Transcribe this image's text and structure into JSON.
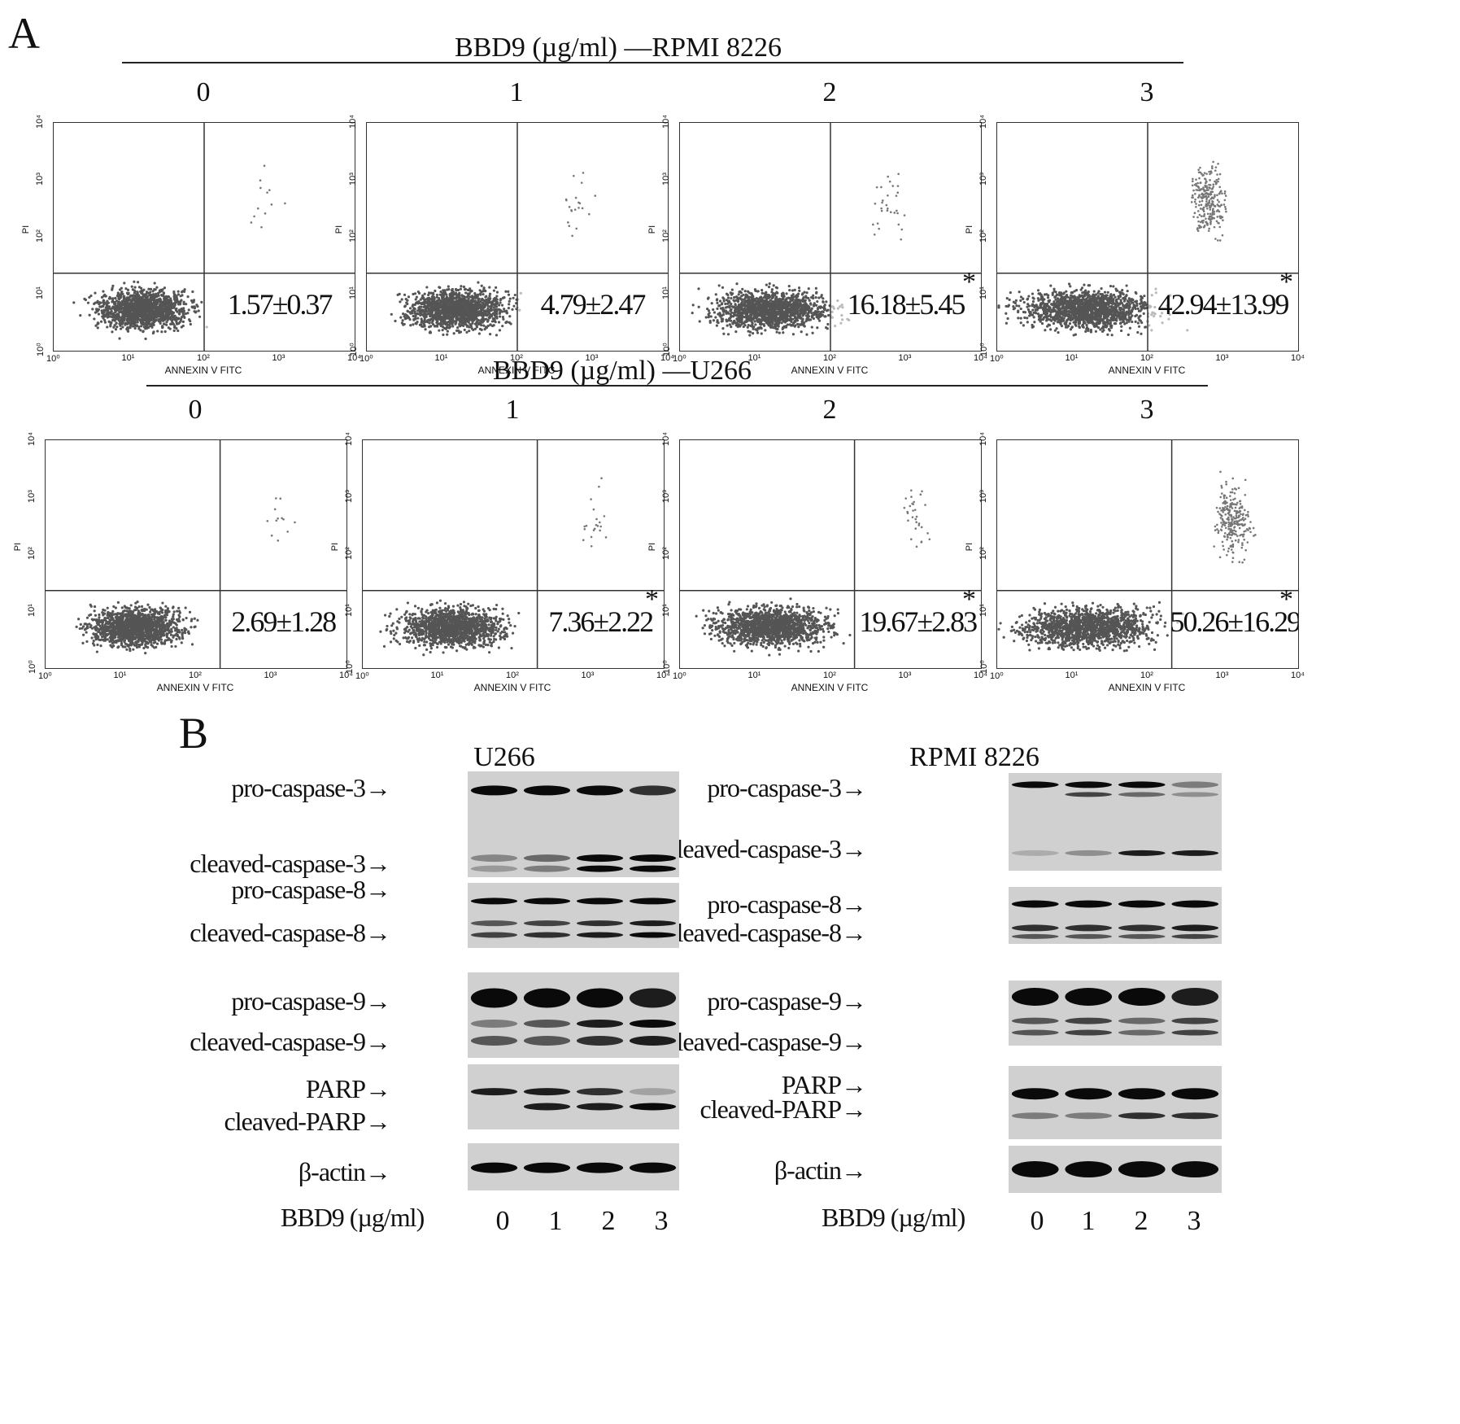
{
  "panelA": {
    "letter": "A",
    "rows": [
      {
        "title": "BBD9 (µg/ml) —RPMI 8226",
        "plots": [
          {
            "dose": "0",
            "value": "1.57±0.37",
            "star": ""
          },
          {
            "dose": "1",
            "value": "4.79±2.47",
            "star": ""
          },
          {
            "dose": "2",
            "value": "16.18±5.45",
            "star": "*"
          },
          {
            "dose": "3",
            "value": "42.94±13.99",
            "star": "*"
          }
        ]
      },
      {
        "title": "BBD9 (µg/ml) —U266",
        "plots": [
          {
            "dose": "0",
            "value": "2.69±1.28",
            "star": ""
          },
          {
            "dose": "1",
            "value": "7.36±2.22",
            "star": "*"
          },
          {
            "dose": "2",
            "value": "19.67±2.83",
            "star": "*"
          },
          {
            "dose": "3",
            "value": "50.26±16.29",
            "star": "*"
          }
        ]
      }
    ],
    "x_axis_label": "ANNEXIN V FITC",
    "y_axis_label": "PI",
    "tick_labels": [
      "10⁰",
      "10¹",
      "10²",
      "10³",
      "10⁴"
    ]
  },
  "panelB": {
    "letter": "B",
    "left_title": "U266",
    "right_title": "RPMI 8226",
    "labels": {
      "pro_caspase_3": "pro-caspase-3→",
      "cleaved_caspase_3": "cleaved-caspase-3→",
      "pro_caspase_8": "pro-caspase-8→",
      "cleaved_caspase_8": "cleaved-caspase-8→",
      "pro_caspase_9": "pro-caspase-9→",
      "cleaved_caspase_9": "cleaved-caspase-9→",
      "parp": "PARP→",
      "cleaved_parp": "cleaved-PARP→",
      "beta_actin": "β-actin→"
    },
    "dose_label": "BBD9 (µg/ml)",
    "lanes": [
      "0",
      "1",
      "2",
      "3"
    ]
  }
}
